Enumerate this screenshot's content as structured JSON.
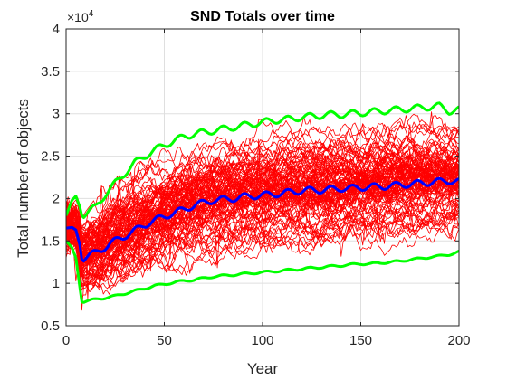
{
  "chart_data": {
    "type": "line",
    "title": "SND Totals over time",
    "xlabel": "Year",
    "ylabel": "Total number of objects",
    "xlim": [
      0,
      200
    ],
    "ylim": [
      5000,
      40000
    ],
    "x_ticks": [
      0,
      50,
      100,
      150,
      200
    ],
    "x_tick_labels": [
      "0",
      "50",
      "100",
      "150",
      "200"
    ],
    "y_ticks": [
      5000,
      10000,
      15000,
      20000,
      25000,
      30000,
      35000,
      40000
    ],
    "y_tick_labels": [
      "0.5",
      "1",
      "1.5",
      "2",
      "2.5",
      "3",
      "3.5",
      "4"
    ],
    "y_exponent_label": "×10",
    "y_exponent_power": "4",
    "grid": true,
    "legend": "none",
    "colors": {
      "runs": "#ff0000",
      "mean": "#0000ff",
      "bounds": "#00ff00",
      "axes": "#262626",
      "grid": "#dfdfdf"
    },
    "run_count": 100,
    "runs_note": "Monte Carlo runs, red lines",
    "series": [
      {
        "color": "#0000ff",
        "role": "mean",
        "x": [
          0,
          3,
          5,
          7,
          8,
          10,
          15,
          20,
          25,
          30,
          35,
          40,
          45,
          50,
          55,
          60,
          65,
          70,
          75,
          80,
          85,
          90,
          95,
          100,
          105,
          110,
          115,
          120,
          125,
          130,
          135,
          140,
          145,
          150,
          155,
          160,
          165,
          170,
          175,
          180,
          185,
          190,
          195,
          200
        ],
        "y": [
          16500,
          16600,
          16300,
          14500,
          12800,
          13100,
          13600,
          14300,
          15000,
          15600,
          16200,
          16900,
          17400,
          17900,
          18300,
          18700,
          19200,
          19500,
          19800,
          19900,
          20000,
          20200,
          20300,
          20400,
          20500,
          20600,
          20800,
          20900,
          21000,
          21000,
          21100,
          21200,
          21200,
          21300,
          21400,
          21400,
          21500,
          21600,
          21700,
          21800,
          21900,
          22000,
          22100,
          22000
        ]
      },
      {
        "color": "#00ff00",
        "role": "upper",
        "x": [
          0,
          3,
          5,
          7,
          8,
          10,
          15,
          20,
          25,
          30,
          35,
          40,
          45,
          50,
          55,
          60,
          65,
          70,
          75,
          80,
          85,
          90,
          95,
          100,
          105,
          110,
          115,
          120,
          125,
          130,
          135,
          140,
          145,
          150,
          155,
          160,
          165,
          170,
          175,
          180,
          185,
          190,
          195,
          200
        ],
        "y": [
          18000,
          19800,
          20300,
          19000,
          18000,
          18200,
          19000,
          20500,
          21800,
          23000,
          24200,
          25000,
          25700,
          26300,
          26800,
          27300,
          27600,
          27800,
          28000,
          28200,
          28400,
          28600,
          28800,
          29000,
          29200,
          29300,
          29400,
          29600,
          29700,
          29800,
          29900,
          29900,
          30000,
          30100,
          30200,
          30300,
          30400,
          30500,
          30600,
          30700,
          30800,
          30900,
          30300,
          30500
        ]
      },
      {
        "color": "#00ff00",
        "role": "lower",
        "x": [
          0,
          3,
          5,
          7,
          8,
          10,
          15,
          20,
          25,
          30,
          35,
          40,
          45,
          50,
          55,
          60,
          65,
          70,
          75,
          80,
          85,
          90,
          95,
          100,
          105,
          110,
          115,
          120,
          125,
          130,
          135,
          140,
          145,
          150,
          155,
          160,
          165,
          170,
          175,
          180,
          185,
          190,
          195,
          200
        ],
        "y": [
          15000,
          14200,
          13000,
          9500,
          7800,
          7900,
          8100,
          8300,
          8500,
          8800,
          9100,
          9400,
          9700,
          9900,
          10100,
          10300,
          10400,
          10600,
          10800,
          10900,
          11000,
          11100,
          11200,
          11300,
          11400,
          11500,
          11600,
          11700,
          11800,
          11900,
          12000,
          12100,
          12200,
          12300,
          12300,
          12400,
          12500,
          12600,
          12800,
          12900,
          13100,
          13200,
          13400,
          13700
        ]
      }
    ]
  }
}
